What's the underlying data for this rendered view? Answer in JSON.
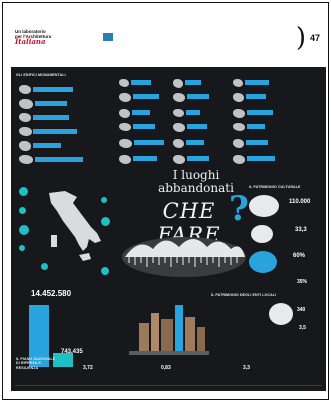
{
  "topline": {
    "left": "",
    "right": ""
  },
  "header": {
    "masthead_line1": "Un laboratorio",
    "masthead_line2": "per l'Architettura",
    "masthead_brand": "Italiana",
    "col1_title": "",
    "col1_text": "",
    "col2_title": "",
    "col2_text": "",
    "page_number": "47"
  },
  "panel": {
    "sec1_title": "GLI EDIFICI MONUMENTALI",
    "sec2_title": "",
    "sec3_title": "IL PATRIMONIO CULTURALE",
    "sec4_title": "IL PATRIMONIO DEGLI ENTI LOCALI",
    "sec5_title": "IL PIANO NAZIONALE DI RIPRESA E RESILIENZA",
    "title_line1": "I luoghi",
    "title_line2": "abbandonati",
    "che_fare": "CHE FARE",
    "qmark": "?",
    "stat_110000": "110.000",
    "stat_33_3": "33,3",
    "stat_60": "60%",
    "stat_35": "35%",
    "stat_340": "340",
    "stat_3_5": "3,5",
    "big_14452": "14.452.580",
    "big_743": "743.435",
    "foot1_num": "3,72",
    "foot2_num": "0,83",
    "foot3_num": "3,3"
  },
  "colors": {
    "panel_bg": "#17181c",
    "accent_blue": "#29a3dd",
    "accent_teal": "#1fbfc6",
    "brand_red": "#c8102e"
  }
}
